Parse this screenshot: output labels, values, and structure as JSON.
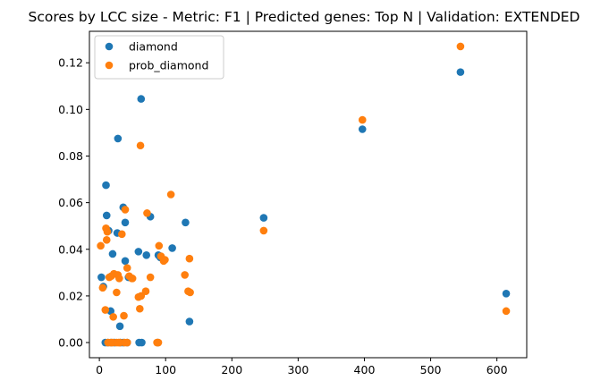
{
  "chart_data": {
    "type": "scatter",
    "title": "Scores by LCC size - Metric: F1 | Predicted genes: Top N | Validation: EXTENDED",
    "xlabel": "",
    "ylabel": "",
    "xlim": [
      -15,
      645
    ],
    "ylim": [
      -0.0065,
      0.1335
    ],
    "xticks": [
      0,
      100,
      200,
      300,
      400,
      500,
      600
    ],
    "yticks": [
      0.0,
      0.02,
      0.04,
      0.06,
      0.08,
      0.1,
      0.12
    ],
    "grid": false,
    "legend_position": "top-left",
    "series": [
      {
        "name": "diamond",
        "color": "#1f77b4",
        "x": [
          3,
          6,
          10,
          11,
          14,
          17,
          20,
          27,
          28,
          31,
          36,
          39,
          39,
          44,
          59,
          63,
          64,
          71,
          77,
          89,
          92,
          110,
          130,
          136,
          248,
          397,
          545,
          614,
          9,
          13,
          18,
          23,
          32,
          36,
          42,
          60,
          88
        ],
        "y": [
          0.028,
          0.024,
          0.0675,
          0.0545,
          0.048,
          0.0135,
          0.038,
          0.047,
          0.0875,
          0.007,
          0.058,
          0.035,
          0.0515,
          0.028,
          0.039,
          0.1045,
          0.0,
          0.0375,
          0.054,
          0.0375,
          0.0365,
          0.0405,
          0.0515,
          0.009,
          0.0535,
          0.0915,
          0.116,
          0.021,
          0.0,
          0.0,
          0.0,
          0.0,
          0.0,
          0.0,
          0.0,
          0.0,
          0.0
        ]
      },
      {
        "name": "prob_diamond",
        "color": "#ff7f0e",
        "x": [
          2,
          5,
          9,
          10,
          11,
          12,
          15,
          18,
          21,
          22,
          26,
          28,
          30,
          34,
          37,
          39,
          42,
          45,
          49,
          50,
          59,
          61,
          62,
          63,
          70,
          72,
          77,
          90,
          93,
          97,
          99,
          108,
          129,
          134,
          136,
          137,
          248,
          397,
          545,
          614,
          13,
          17,
          20,
          26,
          29,
          31,
          38,
          42,
          87,
          89
        ],
        "y": [
          0.0415,
          0.0235,
          0.014,
          0.049,
          0.044,
          0.0475,
          0.028,
          0.0285,
          0.011,
          0.0295,
          0.0215,
          0.029,
          0.0275,
          0.0465,
          0.0115,
          0.057,
          0.032,
          0.0285,
          0.0275,
          0.0275,
          0.0195,
          0.0145,
          0.0845,
          0.02,
          0.022,
          0.0555,
          0.028,
          0.0415,
          0.037,
          0.035,
          0.0355,
          0.0635,
          0.029,
          0.022,
          0.036,
          0.0215,
          0.048,
          0.0955,
          0.127,
          0.0135,
          0.0,
          0.0,
          0.0,
          0.0,
          0.0,
          0.0,
          0.0,
          0.0,
          0.0,
          0.0
        ]
      }
    ]
  }
}
